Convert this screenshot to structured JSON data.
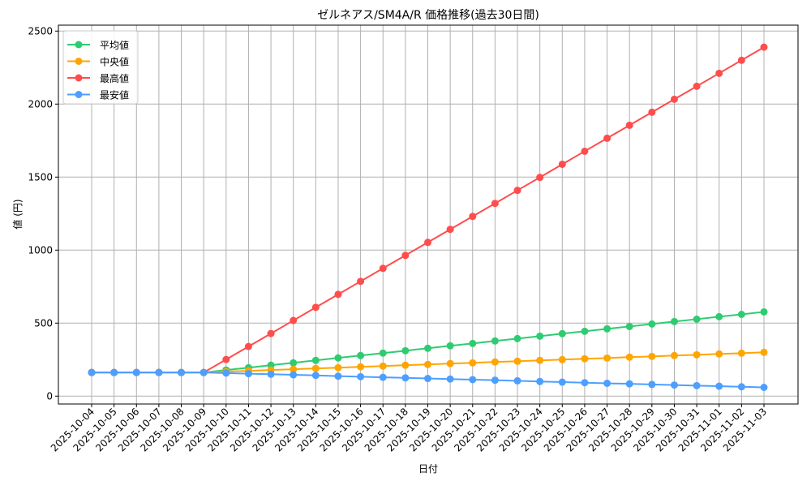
{
  "chart_data": {
    "type": "line",
    "title": "ゼルネアス/SM4A/R 価格推移(過去30日間)",
    "xlabel": "日付",
    "ylabel": "値 (円)",
    "ylim": [
      -60,
      2550
    ],
    "yticks": [
      0,
      500,
      1000,
      1500,
      2000,
      2500
    ],
    "grid": true,
    "legend_position": "top-left",
    "x": [
      "2025-10-04",
      "2025-10-05",
      "2025-10-06",
      "2025-10-07",
      "2025-10-08",
      "2025-10-09",
      "2025-10-10",
      "2025-10-11",
      "2025-10-12",
      "2025-10-13",
      "2025-10-14",
      "2025-10-15",
      "2025-10-16",
      "2025-10-17",
      "2025-10-18",
      "2025-10-19",
      "2025-10-20",
      "2025-10-21",
      "2025-10-22",
      "2025-10-23",
      "2025-10-24",
      "2025-10-25",
      "2025-10-26",
      "2025-10-27",
      "2025-10-28",
      "2025-10-29",
      "2025-10-30",
      "2025-10-31",
      "2025-11-01",
      "2025-11-02",
      "2025-11-03"
    ],
    "series": [
      {
        "name": "平均値",
        "color": "#2ecc71",
        "values": [
          162,
          162,
          162,
          162,
          162,
          162,
          179,
          195,
          212,
          228,
          245,
          262,
          278,
          295,
          311,
          328,
          345,
          361,
          378,
          394,
          411,
          428,
          444,
          461,
          477,
          494,
          511,
          527,
          544,
          560,
          577
        ]
      },
      {
        "name": "中央値",
        "color": "#ffa500",
        "values": [
          162,
          162,
          162,
          162,
          162,
          162,
          168,
          173,
          179,
          184,
          190,
          195,
          201,
          206,
          212,
          217,
          223,
          228,
          234,
          239,
          245,
          250,
          256,
          261,
          267,
          272,
          278,
          283,
          289,
          294,
          300
        ]
      },
      {
        "name": "最高値",
        "color": "#ff4d4d",
        "values": [
          162,
          162,
          162,
          162,
          162,
          162,
          251,
          340,
          429,
          518,
          608,
          697,
          786,
          875,
          964,
          1053,
          1142,
          1231,
          1320,
          1409,
          1498,
          1588,
          1677,
          1766,
          1855,
          1944,
          2033,
          2122,
          2211,
          2300,
          2390
        ]
      },
      {
        "name": "最安値",
        "color": "#4d9fff",
        "values": [
          162,
          162,
          162,
          162,
          162,
          162,
          158,
          154,
          150,
          146,
          142,
          137,
          133,
          129,
          125,
          121,
          117,
          113,
          109,
          105,
          100,
          96,
          92,
          88,
          84,
          80,
          76,
          72,
          68,
          64,
          60
        ]
      }
    ]
  }
}
